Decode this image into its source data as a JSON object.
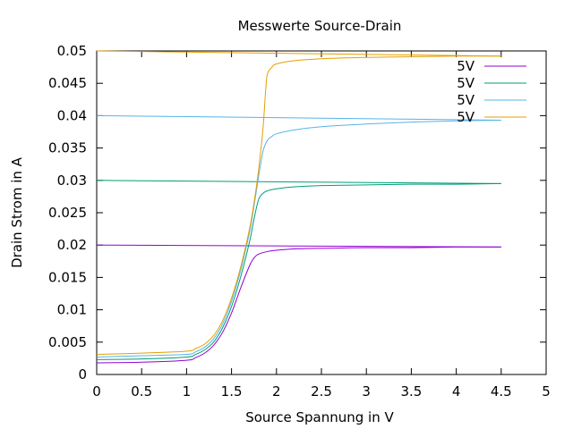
{
  "chart_data": {
    "type": "line",
    "title": "Messwerte Source-Drain",
    "xlabel": "Source Spannung in V",
    "ylabel": "Drain Strom in A",
    "xlim": [
      0,
      5
    ],
    "ylim": [
      0,
      0.05
    ],
    "xticks": [
      "0",
      "0.5",
      "1",
      "1.5",
      "2",
      "2.5",
      "3",
      "3.5",
      "4",
      "4.5",
      "5"
    ],
    "yticks": [
      "0",
      "0.005",
      "0.01",
      "0.015",
      "0.02",
      "0.025",
      "0.03",
      "0.035",
      "0.04",
      "0.045",
      "0.05"
    ],
    "grid": false,
    "legend_position": "top-right",
    "series": [
      {
        "name": "5V",
        "color": "#9400d3",
        "x": [
          0,
          0.5,
          1.0,
          1.1,
          1.2,
          1.3,
          1.4,
          1.5,
          1.6,
          1.7,
          1.75,
          1.8,
          1.9,
          2.0,
          2.2,
          2.5,
          3.0,
          3.5,
          4.0,
          4.5
        ],
        "y": [
          0.0018,
          0.0019,
          0.0022,
          0.0026,
          0.0033,
          0.0045,
          0.0065,
          0.0095,
          0.0133,
          0.0168,
          0.018,
          0.0186,
          0.019,
          0.0192,
          0.0194,
          0.0195,
          0.0196,
          0.0196,
          0.0197,
          0.0197
        ]
      },
      {
        "name": "5V",
        "color": "#009e73",
        "x": [
          0,
          0.5,
          1.0,
          1.1,
          1.2,
          1.3,
          1.4,
          1.5,
          1.6,
          1.7,
          1.75,
          1.8,
          1.85,
          1.9,
          2.0,
          2.2,
          2.5,
          3.0,
          3.5,
          4.0,
          4.5
        ],
        "y": [
          0.0023,
          0.0024,
          0.0027,
          0.0031,
          0.0038,
          0.005,
          0.0072,
          0.0105,
          0.015,
          0.0205,
          0.024,
          0.027,
          0.028,
          0.0284,
          0.0287,
          0.029,
          0.0292,
          0.0293,
          0.0294,
          0.0294,
          0.0295
        ]
      },
      {
        "name": "5V",
        "color": "#56b4e9",
        "x": [
          0,
          0.5,
          1.0,
          1.1,
          1.2,
          1.3,
          1.4,
          1.5,
          1.6,
          1.7,
          1.75,
          1.8,
          1.85,
          1.9,
          1.95,
          2.0,
          2.2,
          2.5,
          3.0,
          3.5,
          4.0,
          4.5
        ],
        "y": [
          0.0027,
          0.0029,
          0.0031,
          0.0035,
          0.0042,
          0.0055,
          0.0078,
          0.0113,
          0.016,
          0.022,
          0.026,
          0.0305,
          0.0345,
          0.0362,
          0.0368,
          0.0372,
          0.0378,
          0.0383,
          0.0387,
          0.039,
          0.0392,
          0.0393
        ]
      },
      {
        "name": "5V",
        "color": "#e69f00",
        "x": [
          0,
          0.5,
          1.0,
          1.1,
          1.2,
          1.3,
          1.4,
          1.5,
          1.6,
          1.7,
          1.75,
          1.8,
          1.85,
          1.88,
          1.9,
          1.95,
          2.0,
          2.2,
          2.5,
          3.0,
          3.5,
          4.0,
          4.5
        ],
        "y": [
          0.0031,
          0.0033,
          0.0036,
          0.004,
          0.0047,
          0.006,
          0.0083,
          0.0118,
          0.0165,
          0.0225,
          0.0265,
          0.0315,
          0.038,
          0.044,
          0.0465,
          0.0475,
          0.048,
          0.0485,
          0.0488,
          0.049,
          0.0491,
          0.0492,
          0.0492
        ]
      }
    ],
    "reference_lines": [
      {
        "color": "#9400d3",
        "x": [
          0,
          4.5
        ],
        "y": [
          0.02,
          0.0197
        ]
      },
      {
        "color": "#009e73",
        "x": [
          0,
          4.5
        ],
        "y": [
          0.03,
          0.0295
        ]
      },
      {
        "color": "#56b4e9",
        "x": [
          0,
          4.5
        ],
        "y": [
          0.04,
          0.0393
        ]
      },
      {
        "color": "#e69f00",
        "x": [
          0,
          4.5
        ],
        "y": [
          0.05,
          0.0492
        ]
      }
    ]
  }
}
